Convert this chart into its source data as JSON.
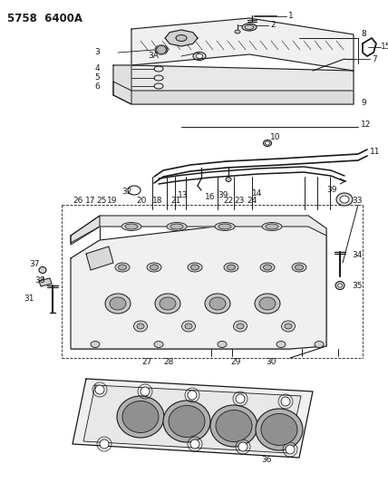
{
  "title": "5758  6400A",
  "bg": "#ffffff",
  "lc": "#1a1a1a",
  "figsize": [
    4.28,
    5.33
  ],
  "dpi": 100,
  "lw": 0.7
}
